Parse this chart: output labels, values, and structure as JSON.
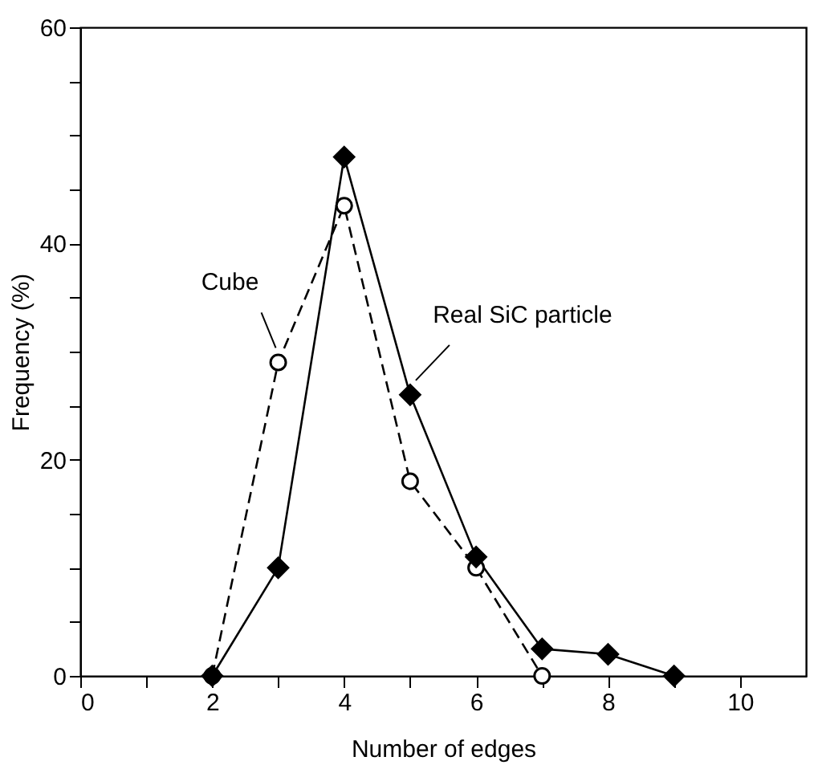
{
  "chart_data": {
    "type": "line",
    "xlabel": "Number of edges",
    "ylabel": "Frequency (%)",
    "xlim": [
      0,
      11
    ],
    "ylim": [
      0,
      60
    ],
    "xticks": [
      0,
      {
        "value": 1,
        "label": null
      },
      2,
      {
        "value": 3,
        "label": null
      },
      4,
      {
        "value": 5,
        "label": null
      },
      6,
      {
        "value": 7,
        "label": null
      },
      8,
      {
        "value": 9,
        "label": null
      },
      10
    ],
    "yticks": [
      0,
      {
        "value": 5,
        "label": null
      },
      {
        "value": 10,
        "label": null
      },
      {
        "value": 15,
        "label": null
      },
      20,
      {
        "value": 25,
        "label": null
      },
      {
        "value": 30,
        "label": null
      },
      {
        "value": 35,
        "label": null
      },
      40,
      {
        "value": 45,
        "label": null
      },
      {
        "value": 50,
        "label": null
      },
      {
        "value": 55,
        "label": null
      },
      60
    ],
    "grid": false,
    "legend": false,
    "series": [
      {
        "name": "Cube",
        "color": "#000000",
        "marker": "circle",
        "line_style": "dashed",
        "x": [
          2,
          3,
          4,
          5,
          6,
          7
        ],
        "values": [
          0,
          29,
          43.5,
          18,
          10,
          0
        ]
      },
      {
        "name": "Real SiC particle",
        "color": "#000000",
        "marker": "diamond",
        "line_style": "solid",
        "x": [
          2,
          3,
          4,
          5,
          6,
          7,
          8,
          9
        ],
        "values": [
          0,
          10,
          48,
          26,
          11,
          2.5,
          2,
          0
        ]
      }
    ]
  }
}
